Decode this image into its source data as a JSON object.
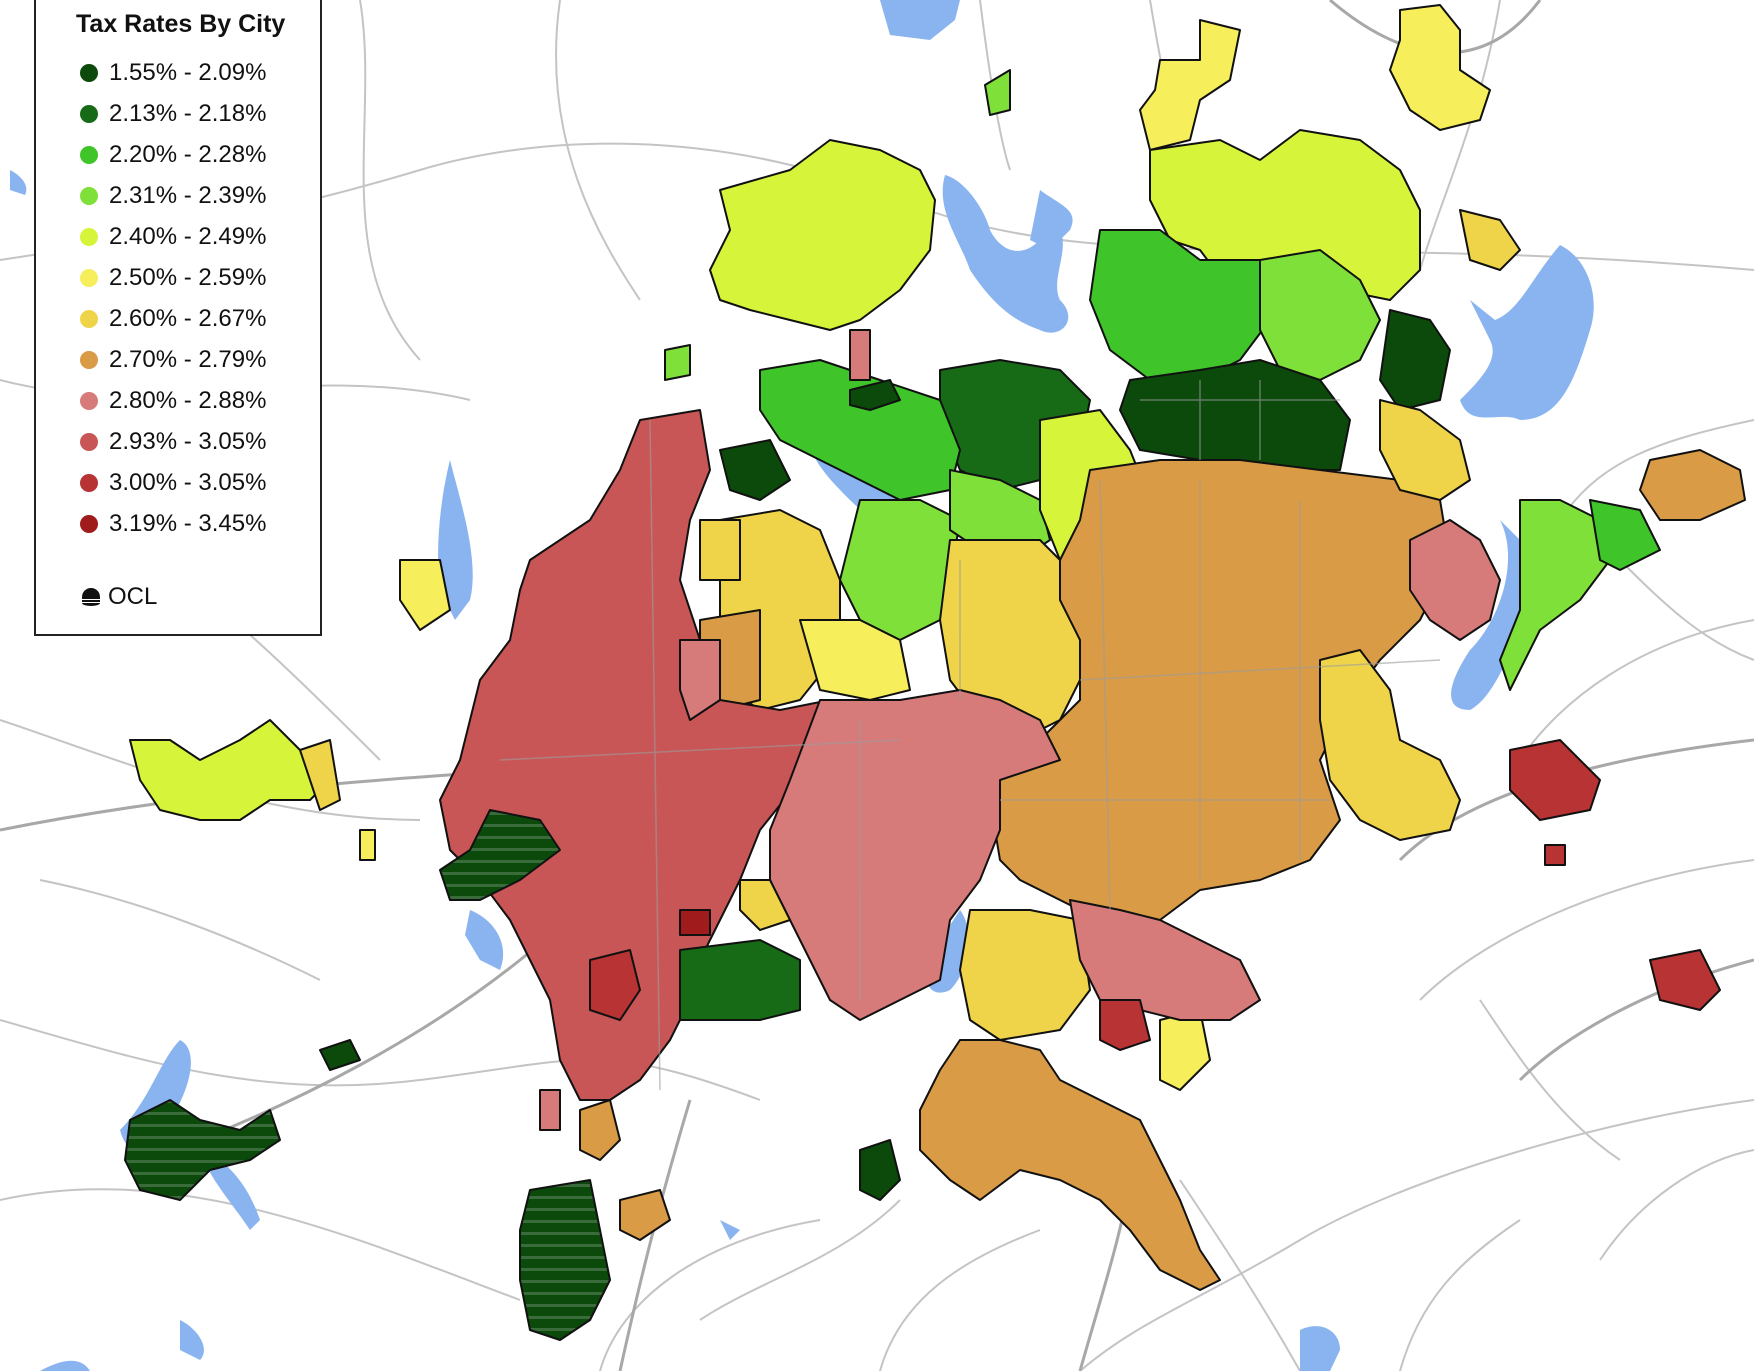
{
  "legend": {
    "title": "Tax Rates By City",
    "items": [
      {
        "label": "1.55% - 2.09%",
        "color": "#0c4a0c"
      },
      {
        "label": "2.13% - 2.18%",
        "color": "#176b17"
      },
      {
        "label": "2.20% - 2.28%",
        "color": "#3fc42a"
      },
      {
        "label": "2.31% - 2.39%",
        "color": "#7fe03a"
      },
      {
        "label": "2.40% - 2.49%",
        "color": "#d6f53a"
      },
      {
        "label": "2.50% - 2.59%",
        "color": "#f6ee5a"
      },
      {
        "label": "2.60% - 2.67%",
        "color": "#efd44a"
      },
      {
        "label": "2.70% - 2.79%",
        "color": "#d99b45"
      },
      {
        "label": "2.80% - 2.88%",
        "color": "#d77a7a"
      },
      {
        "label": "2.93% - 3.05%",
        "color": "#c95656"
      },
      {
        "label": "3.00% - 3.05%",
        "color": "#b83333"
      },
      {
        "label": "3.19% - 3.45%",
        "color": "#a01c1c"
      }
    ],
    "ocl_label": "OCL"
  },
  "colors": {
    "water": "#8ab4f0",
    "road": "#b8b8b8",
    "boundary": "#111111"
  }
}
